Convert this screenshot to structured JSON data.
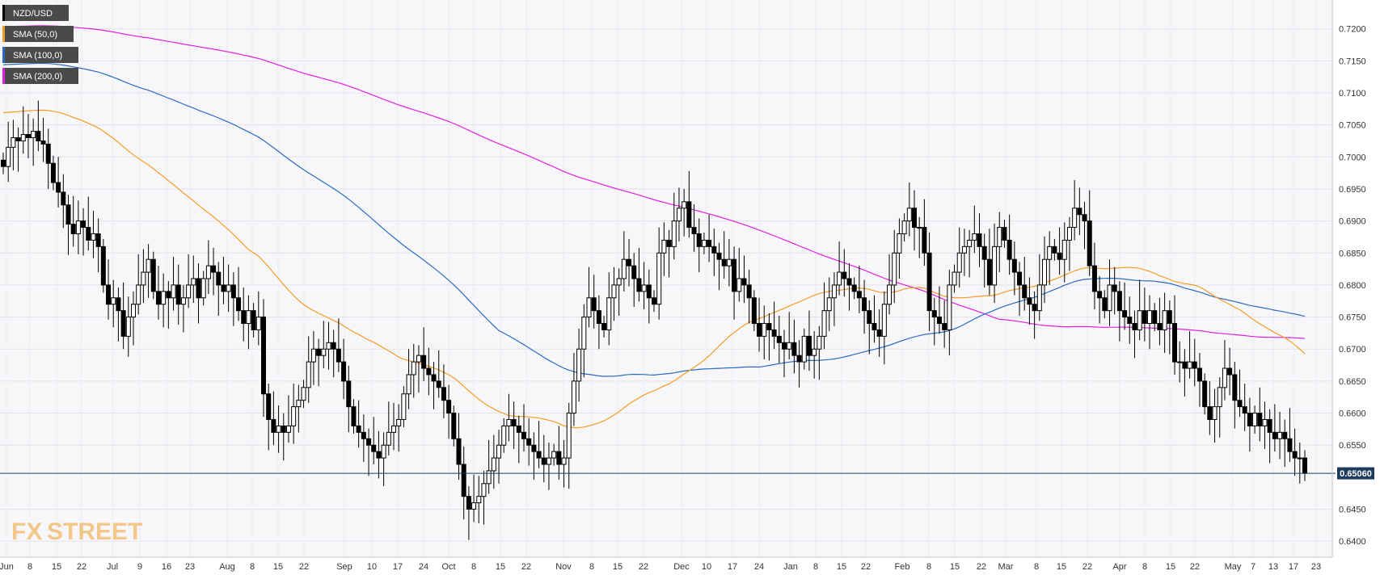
{
  "chart_data": {
    "type": "candlestick",
    "symbol": "NZD/USD",
    "last_price": "0.65060",
    "ylim": [
      0.6375,
      0.7245
    ],
    "y_ticks": [
      "0.7200",
      "0.7150",
      "0.7100",
      "0.7050",
      "0.7000",
      "0.6950",
      "0.6900",
      "0.6850",
      "0.6800",
      "0.6750",
      "0.6700",
      "0.6650",
      "0.6600",
      "0.6550",
      "0.6450",
      "0.6400"
    ],
    "x_ticks": [
      "Jun",
      "8",
      "15",
      "22",
      "Jul",
      "9",
      "16",
      "23",
      "Aug",
      "8",
      "15",
      "22",
      "Sep",
      "10",
      "17",
      "24",
      "Oct",
      "8",
      "15",
      "22",
      "Nov",
      "8",
      "15",
      "22",
      "Dec",
      "10",
      "17",
      "24",
      "Jan",
      "8",
      "15",
      "22",
      "Feb",
      "8",
      "15",
      "22",
      "Mar",
      "8",
      "15",
      "22",
      "Apr",
      "8",
      "15",
      "22",
      "May",
      "7",
      "13",
      "17",
      "23"
    ],
    "legend": [
      {
        "label": "NZD/USD",
        "color": "#000000"
      },
      {
        "label": "SMA (50,0)",
        "color": "#f39c27"
      },
      {
        "label": "SMA (100,0)",
        "color": "#2a6bc1"
      },
      {
        "label": "SMA (200,0)",
        "color": "#e020e0"
      }
    ],
    "closes": [
      0.6985,
      0.7015,
      0.703,
      0.7025,
      0.7035,
      0.703,
      0.704,
      0.7025,
      0.702,
      0.699,
      0.696,
      0.6945,
      0.6925,
      0.6895,
      0.688,
      0.69,
      0.689,
      0.687,
      0.688,
      0.686,
      0.68,
      0.677,
      0.678,
      0.676,
      0.672,
      0.675,
      0.677,
      0.68,
      0.682,
      0.684,
      0.679,
      0.677,
      0.679,
      0.678,
      0.68,
      0.677,
      0.678,
      0.68,
      0.681,
      0.678,
      0.681,
      0.683,
      0.682,
      0.68,
      0.679,
      0.68,
      0.678,
      0.676,
      0.674,
      0.676,
      0.673,
      0.675,
      0.663,
      0.659,
      0.657,
      0.658,
      0.657,
      0.658,
      0.661,
      0.662,
      0.664,
      0.668,
      0.67,
      0.669,
      0.67,
      0.671,
      0.67,
      0.668,
      0.665,
      0.661,
      0.658,
      0.657,
      0.656,
      0.655,
      0.654,
      0.653,
      0.655,
      0.657,
      0.658,
      0.659,
      0.663,
      0.666,
      0.668,
      0.669,
      0.667,
      0.666,
      0.665,
      0.664,
      0.662,
      0.66,
      0.656,
      0.652,
      0.647,
      0.645,
      0.646,
      0.647,
      0.649,
      0.651,
      0.653,
      0.655,
      0.658,
      0.659,
      0.658,
      0.657,
      0.656,
      0.655,
      0.654,
      0.653,
      0.652,
      0.653,
      0.654,
      0.652,
      0.653,
      0.66,
      0.665,
      0.67,
      0.675,
      0.678,
      0.676,
      0.674,
      0.673,
      0.678,
      0.68,
      0.681,
      0.684,
      0.683,
      0.681,
      0.679,
      0.68,
      0.678,
      0.677,
      0.685,
      0.687,
      0.686,
      0.69,
      0.692,
      0.693,
      0.689,
      0.688,
      0.686,
      0.687,
      0.686,
      0.685,
      0.684,
      0.683,
      0.684,
      0.679,
      0.681,
      0.68,
      0.678,
      0.674,
      0.672,
      0.674,
      0.673,
      0.672,
      0.671,
      0.67,
      0.671,
      0.669,
      0.668,
      0.672,
      0.669,
      0.67,
      0.672,
      0.676,
      0.678,
      0.68,
      0.682,
      0.681,
      0.68,
      0.679,
      0.678,
      0.676,
      0.674,
      0.673,
      0.672,
      0.677,
      0.68,
      0.685,
      0.688,
      0.69,
      0.692,
      0.689,
      0.689,
      0.685,
      0.676,
      0.675,
      0.674,
      0.673,
      0.68,
      0.682,
      0.685,
      0.686,
      0.687,
      0.688,
      0.686,
      0.684,
      0.68,
      0.686,
      0.689,
      0.687,
      0.684,
      0.682,
      0.68,
      0.678,
      0.677,
      0.676,
      0.68,
      0.684,
      0.686,
      0.685,
      0.684,
      0.687,
      0.689,
      0.692,
      0.691,
      0.69,
      0.683,
      0.679,
      0.678,
      0.676,
      0.68,
      0.679,
      0.676,
      0.675,
      0.674,
      0.673,
      0.676,
      0.674,
      0.676,
      0.674,
      0.673,
      0.676,
      0.674,
      0.668,
      0.668,
      0.667,
      0.668,
      0.667,
      0.665,
      0.661,
      0.659,
      0.661,
      0.664,
      0.667,
      0.666,
      0.662,
      0.661,
      0.66,
      0.658,
      0.66,
      0.658,
      0.659,
      0.657,
      0.656,
      0.657,
      0.656,
      0.654,
      0.653,
      0.653,
      0.6506
    ]
  }
}
